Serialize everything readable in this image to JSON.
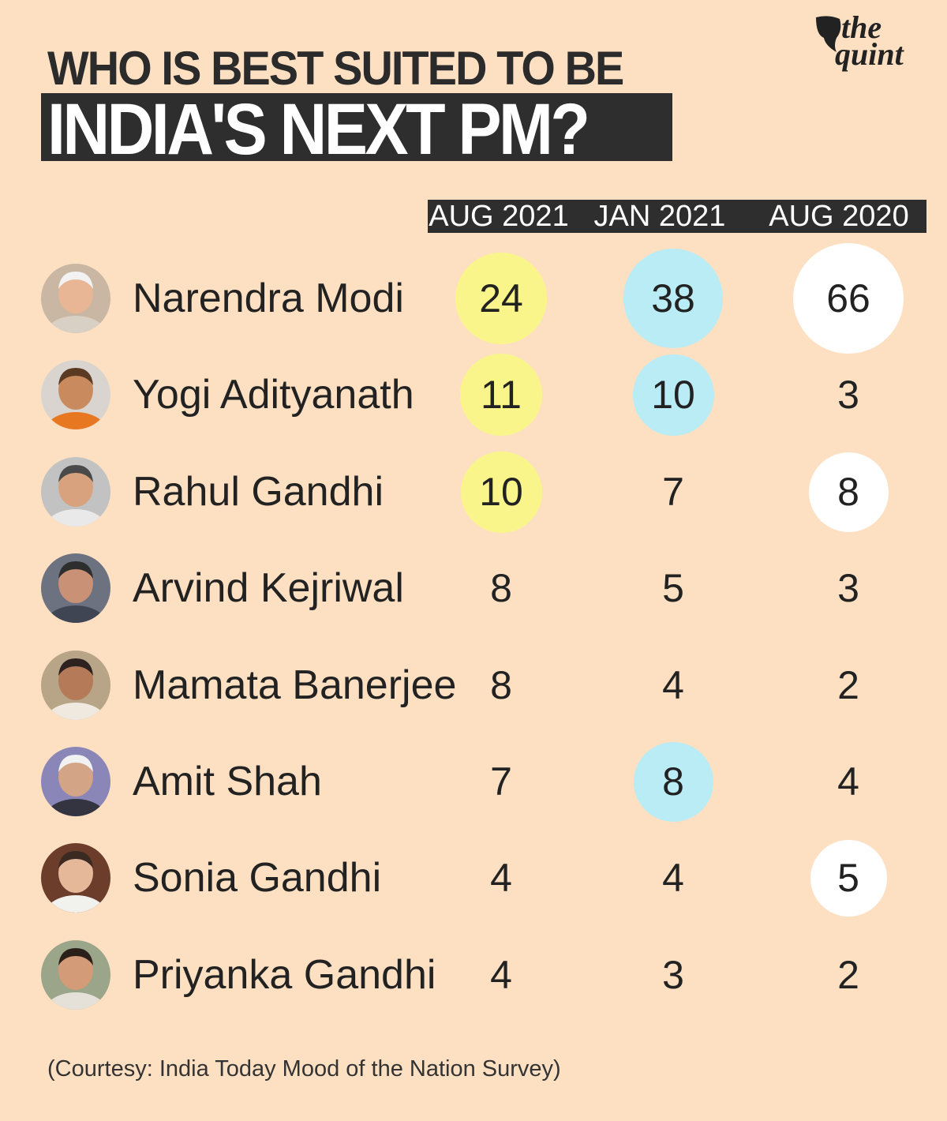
{
  "title": {
    "line1": "WHO IS BEST SUITED TO BE",
    "line2": "INDIA'S NEXT PM?"
  },
  "logo": {
    "line1": "the",
    "line2": "quint"
  },
  "colors": {
    "background": "#fde0c2",
    "aug2021": "#f9f58a",
    "jan2021": "#b9ecf5",
    "aug2020": "#ffffff",
    "header_bg": "#2e2e2e"
  },
  "chart_data": {
    "type": "table",
    "title": "WHO IS BEST SUITED TO BE INDIA'S NEXT PM?",
    "columns": [
      "AUG 2021",
      "JAN 2021",
      "AUG 2020"
    ],
    "series": [
      {
        "name": "AUG 2021",
        "values": [
          24,
          11,
          10,
          8,
          8,
          7,
          4,
          4
        ],
        "highlighted": [
          true,
          true,
          true,
          false,
          false,
          false,
          false,
          false
        ]
      },
      {
        "name": "JAN 2021",
        "values": [
          38,
          10,
          7,
          5,
          4,
          8,
          4,
          3
        ],
        "highlighted": [
          true,
          true,
          false,
          false,
          false,
          true,
          false,
          false
        ]
      },
      {
        "name": "AUG 2020",
        "values": [
          66,
          3,
          8,
          3,
          2,
          4,
          5,
          2
        ],
        "highlighted": [
          true,
          false,
          true,
          false,
          false,
          false,
          true,
          false
        ]
      }
    ],
    "rows": [
      {
        "name": "Narendra Modi",
        "values": [
          "24",
          "38",
          "66"
        ]
      },
      {
        "name": "Yogi Adityanath",
        "values": [
          "11",
          "10",
          "3"
        ]
      },
      {
        "name": "Rahul Gandhi",
        "values": [
          "10",
          "7",
          "8"
        ]
      },
      {
        "name": "Arvind Kejriwal",
        "values": [
          "8",
          "5",
          "3"
        ]
      },
      {
        "name": "Mamata Banerjee",
        "values": [
          "8",
          "4",
          "2"
        ]
      },
      {
        "name": "Amit Shah",
        "values": [
          "7",
          "8",
          "4"
        ]
      },
      {
        "name": "Sonia Gandhi",
        "values": [
          "4",
          "4",
          "5"
        ]
      },
      {
        "name": "Priyanka Gandhi",
        "values": [
          "4",
          "3",
          "2"
        ]
      }
    ]
  },
  "footer": "(Courtesy: India Today Mood of the Nation Survey)"
}
